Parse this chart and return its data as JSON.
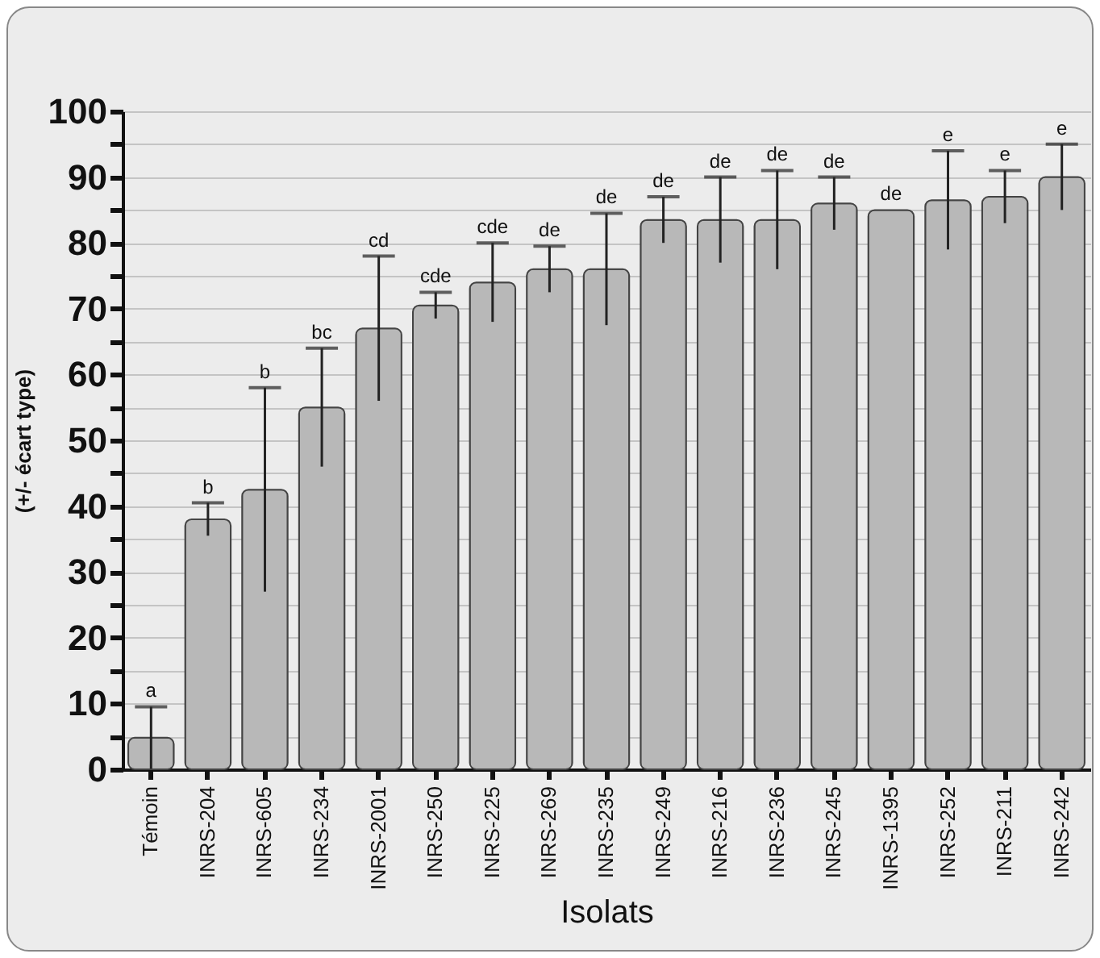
{
  "chart_data": {
    "type": "bar",
    "xlabel": "Isolats",
    "ylabel": "(+/- écart type)",
    "categories": [
      "Témoin",
      "INRS-204",
      "INRS-605",
      "INRS-234",
      "INRS-2001",
      "INRS-250",
      "INRS-225",
      "INRS-269",
      "INRS-235",
      "INRS-249",
      "INRS-216",
      "INRS-236",
      "INRS-245",
      "INRS-1395",
      "INRS-252",
      "INRS-211",
      "INRS-242"
    ],
    "values": [
      4.8,
      38,
      42.5,
      55,
      67,
      70.5,
      74,
      76,
      76,
      83.5,
      83.5,
      83.5,
      86,
      85,
      86.5,
      87,
      90
    ],
    "errors": [
      4.7,
      2.5,
      15.5,
      9,
      11,
      2,
      6,
      3.5,
      8.5,
      3.5,
      6.5,
      7.5,
      4,
      null,
      7.5,
      4,
      5
    ],
    "color": "#b8b8b8",
    "ylim": [
      0,
      100
    ],
    "yticks": [
      0,
      {
        "value": 5,
        "label": null
      },
      10,
      {
        "value": 15,
        "label": null
      },
      20,
      {
        "value": 25,
        "label": null
      },
      30,
      {
        "value": 35,
        "label": null
      },
      40,
      {
        "value": 45,
        "label": null
      },
      50,
      {
        "value": 55,
        "label": null
      },
      60,
      {
        "value": 65,
        "label": null
      },
      70,
      {
        "value": 75,
        "label": null
      },
      80,
      {
        "value": 85,
        "label": null
      },
      90,
      {
        "value": 95,
        "label": null
      },
      100
    ],
    "grid": "y",
    "annotations": [
      {
        "text": "a",
        "x": "Témoin",
        "y": 9.5
      },
      {
        "text": "b",
        "x": "INRS-204",
        "y": 40.5
      },
      {
        "text": "b",
        "x": "INRS-605",
        "y": 58
      },
      {
        "text": "bc",
        "x": "INRS-234",
        "y": 64
      },
      {
        "text": "cd",
        "x": "INRS-2001",
        "y": 78
      },
      {
        "text": "cde",
        "x": "INRS-250",
        "y": 72.5
      },
      {
        "text": "cde",
        "x": "INRS-225",
        "y": 80
      },
      {
        "text": "de",
        "x": "INRS-269",
        "y": 79.5
      },
      {
        "text": "de",
        "x": "INRS-235",
        "y": 84.5
      },
      {
        "text": "de",
        "x": "INRS-249",
        "y": 87
      },
      {
        "text": "de",
        "x": "INRS-216",
        "y": 90
      },
      {
        "text": "de",
        "x": "INRS-236",
        "y": 91
      },
      {
        "text": "de",
        "x": "INRS-245",
        "y": 90
      },
      {
        "text": "de",
        "x": "INRS-1395",
        "y": 85
      },
      {
        "text": "e",
        "x": "INRS-252",
        "y": 94
      },
      {
        "text": "e",
        "x": "INRS-211",
        "y": 91
      },
      {
        "text": "e",
        "x": "INRS-242",
        "y": 95
      }
    ]
  }
}
